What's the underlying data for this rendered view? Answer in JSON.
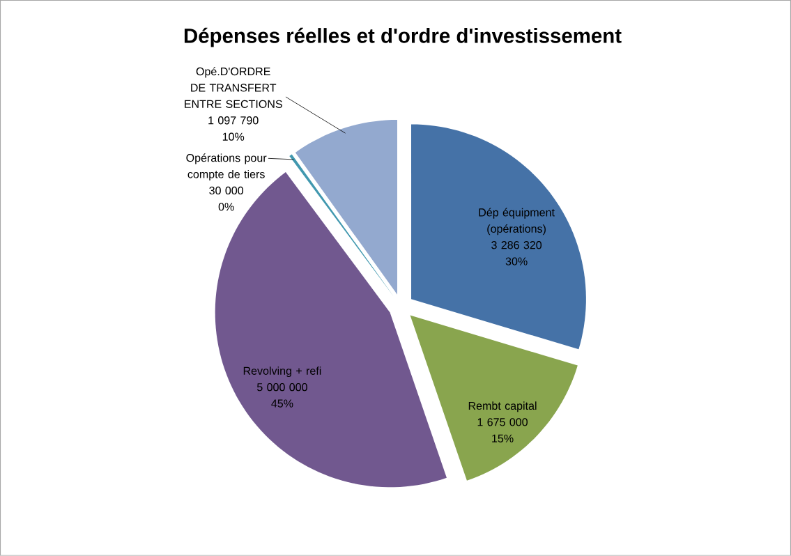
{
  "chart_data": {
    "type": "pie",
    "title": "Dépenses réelles et d'ordre d'investissement",
    "categories": [
      "Dép équipment (opérations)",
      "Rembt capital",
      "Revolving + refi",
      "Opérations pour compte de tiers",
      "Opé.D'ORDRE DE TRANSFERT ENTRE SECTIONS"
    ],
    "values": [
      3286320,
      1675000,
      5000000,
      30000,
      1097790
    ],
    "colors": [
      "#4572a7",
      "#89a54e",
      "#71588f",
      "#4198af",
      "#93a9cf"
    ],
    "value_labels": [
      "3 286 320",
      "1 675 000",
      "5 000 000",
      "30 000",
      "1 097 790"
    ],
    "annotations": [
      "30%",
      "15%",
      "45%",
      "0%",
      "10%"
    ]
  }
}
